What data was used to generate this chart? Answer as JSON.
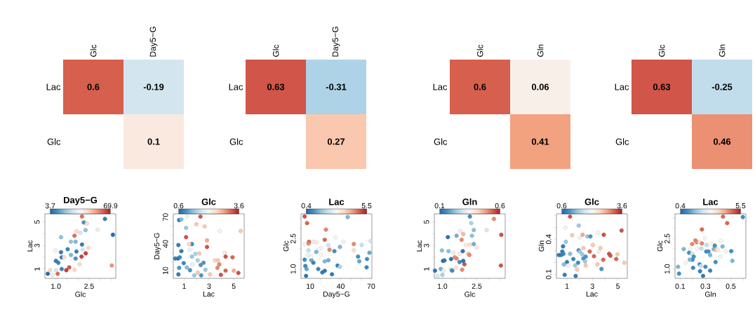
{
  "chart_data": [
    {
      "type": "heatmap",
      "categories": [
        "Glc",
        "Day5−G"
      ],
      "y_categories": [
        "Lac",
        "Glc"
      ],
      "cells": [
        [
          0.6,
          -0.19
        ],
        [
          null,
          0.1
        ]
      ],
      "data_labels": true
    },
    {
      "type": "heatmap",
      "categories": [
        "Glc",
        "Day5−G"
      ],
      "y_categories": [
        "Lac",
        "Glc"
      ],
      "cells": [
        [
          0.63,
          -0.31
        ],
        [
          null,
          0.27
        ]
      ],
      "data_labels": true
    },
    {
      "type": "heatmap",
      "categories": [
        "Glc",
        "Gln"
      ],
      "y_categories": [
        "Lac",
        "Glc"
      ],
      "cells": [
        [
          0.6,
          0.06
        ],
        [
          null,
          0.41
        ]
      ],
      "data_labels": true
    },
    {
      "type": "heatmap",
      "categories": [
        "Glc",
        "Gln"
      ],
      "y_categories": [
        "Lac",
        "Glc"
      ],
      "cells": [
        [
          0.63,
          -0.25
        ],
        [
          null,
          0.46
        ]
      ],
      "data_labels": true
    },
    {
      "type": "scatter",
      "clabel": "Day5−G",
      "xlabel": "Glc",
      "ylabel": "Lac",
      "marker": "circle",
      "clim": [
        3.7,
        69.9
      ],
      "cticks": [
        3.7,
        69.9
      ],
      "xlim": [
        0.5,
        3.71
      ],
      "ylim": [
        0.21,
        5.69
      ],
      "xticks": [
        {
          "value": 1,
          "label": "1.0"
        },
        {
          "value": 1.5,
          "label": null
        },
        {
          "value": 2,
          "label": null
        },
        {
          "value": 2.5,
          "label": "2.5"
        },
        {
          "value": 3,
          "label": null
        },
        {
          "value": 3.5,
          "label": null
        }
      ],
      "yticks": [
        1,
        {
          "value": 2,
          "label": null
        },
        3,
        {
          "value": 4,
          "label": null
        },
        5
      ],
      "x": [
        0.63,
        0.74,
        0.84,
        1.08,
        1.0,
        1.26,
        1.47,
        1.6,
        1.84,
        2.07,
        1.11,
        1.0,
        1.26,
        1.37,
        1.23,
        0.98,
        1.53,
        1.68,
        1.89,
        1.93,
        2.21,
        2.16,
        2.35,
        2.47,
        2.18,
        1.68,
        1.89,
        1.84,
        1.93,
        2.11,
        2.34,
        1.23,
        2.26,
        2.4,
        2.18,
        2.89,
        3.22,
        3.58,
        3.53
      ],
      "values": [
        0.6,
        0.9,
        0.5,
        0.6,
        0.9,
        1.0,
        0.9,
        1.14,
        0.94,
        1.4,
        1.53,
        1.69,
        1.99,
        1.99,
        2.43,
        2.58,
        2.68,
        2.19,
        1.89,
        2.49,
        2.64,
        2.05,
        2.33,
        2.8,
        3.08,
        3.32,
        3.32,
        3.83,
        4.21,
        4.07,
        4.31,
        3.71,
        4.96,
        4.86,
        5.46,
        4.35,
        5.26,
        3.91,
        1.3
      ],
      "cvalues": [
        5,
        45,
        40,
        60,
        30,
        10,
        65,
        62,
        45,
        45,
        10,
        8,
        8,
        45,
        8,
        38,
        10,
        18,
        12,
        8,
        30,
        65,
        65,
        45,
        8,
        20,
        18,
        60,
        45,
        30,
        20,
        20,
        12,
        45,
        60,
        40,
        8,
        5,
        55
      ]
    },
    {
      "type": "scatter",
      "clabel": "Glc",
      "xlabel": "Lac",
      "ylabel": "Day5−G",
      "marker": "circle",
      "clim": [
        0.6,
        3.6
      ],
      "cticks": [
        0.6,
        3.6
      ],
      "xlim": [
        0.12,
        5.84
      ],
      "ylim": [
        1.4,
        73.7
      ],
      "xticks": [
        1,
        {
          "value": 2,
          "label": null
        },
        3,
        {
          "value": 4,
          "label": null
        },
        5
      ],
      "yticks": [
        10,
        {
          "value": 20,
          "label": null
        },
        {
          "value": 30,
          "label": null
        },
        40,
        {
          "value": 50,
          "label": null
        },
        {
          "value": 60,
          "label": null
        },
        70
      ],
      "x": [
        0.59,
        0.77,
        1.24,
        1.15,
        0.53,
        0.77,
        0.49,
        0.27,
        0.64,
        0.96,
        0.59,
        0.53,
        1.21,
        1.47,
        1.66,
        1.62,
        1.62,
        1.39,
        1.15,
        1.43,
        1.9,
        2.09,
        2.33,
        2.56,
        2.22,
        1.81,
        2.09,
        2.37,
        2.71,
        1.99,
        2.65,
        2.31,
        2.84,
        2.84,
        3.08,
        3.46,
        3.72,
        3.83,
        3.68,
        3.96,
        4.28,
        4.34,
        4.34,
        4.9,
        5.0,
        5.37,
        3.87,
        5.56
      ],
      "values": [
        66.7,
        67.4,
        70.6,
        58.0,
        38.7,
        31.9,
        23.6,
        23.6,
        24.9,
        18.4,
        13.1,
        5.8,
        13.6,
        10.5,
        17.0,
        25.7,
        39.8,
        39.8,
        47.6,
        33.5,
        28.8,
        21.5,
        16.3,
        18.9,
        29.3,
        4.8,
        7.9,
        4.8,
        11.0,
        62.0,
        59.6,
        70.6,
        36.6,
        43.9,
        5.8,
        21.5,
        21.5,
        17.0,
        13.1,
        5.3,
        30.1,
        25.7,
        10.0,
        24.9,
        10.0,
        7.4,
        54.4,
        54.4
      ],
      "cvalues": [
        0.8,
        1.3,
        2.0,
        1.4,
        0.8,
        0.8,
        0.7,
        0.8,
        0.9,
        0.9,
        1.0,
        0.8,
        1.3,
        1.0,
        2.0,
        1.4,
        0.9,
        2.5,
        3.3,
        2.0,
        1.5,
        1.5,
        1.0,
        1.0,
        2.6,
        1.4,
        2.6,
        1.0,
        1.4,
        2.6,
        2.6,
        3.3,
        3.3,
        2.8,
        2.6,
        2.5,
        2.6,
        3.0,
        3.0,
        3.3,
        2.3,
        3.3,
        3.2,
        3.2,
        2.8,
        3.3,
        2.2,
        2.6
      ]
    },
    {
      "type": "scatter",
      "clabel": "Lac",
      "xlabel": "Day5−G",
      "ylabel": "Glc",
      "marker": "circle",
      "clim": [
        0.4,
        5.5
      ],
      "cticks": [
        0.4,
        5.5
      ],
      "xlim": [
        0.95,
        70.7
      ],
      "ylim": [
        0.54,
        3.72
      ],
      "xticks": [
        10,
        {
          "value": 20,
          "label": null
        },
        {
          "value": 30,
          "label": null
        },
        40,
        {
          "value": 50,
          "label": null
        },
        {
          "value": 60,
          "label": null
        },
        70
      ],
      "yticks": [
        {
          "value": 1,
          "label": "1.0"
        },
        {
          "value": 1.5,
          "label": null
        },
        {
          "value": 2,
          "label": null
        },
        {
          "value": 2.5,
          "label": "2.5"
        },
        {
          "value": 3,
          "label": null
        },
        {
          "value": 3.5,
          "label": null
        }
      ],
      "x": [
        4.5,
        6.9,
        25.5,
        24.3,
        8.8,
        8.3,
        4.5,
        13.1,
        16.0,
        20.7,
        18.3,
        29.0,
        35.0,
        42.6,
        27.9,
        33.8,
        39.3,
        46.9,
        52.9,
        52.9,
        60.7,
        69.5,
        68.3,
        57.1,
        58.3,
        65.9,
        65.5,
        36.9,
        39.3,
        31.4,
        24.3,
        21.9,
        17.9,
        13.1,
        11.2,
        6.4,
        5.2,
        5.9,
        4.5,
        7.6,
        10.7,
        8.3,
        16.0,
        20.7,
        24.3,
        27.9
      ],
      "values": [
        3.59,
        3.26,
        2.94,
        2.44,
        2.34,
        2.26,
        2.23,
        2.34,
        2.32,
        2.03,
        1.95,
        1.95,
        2.55,
        2.34,
        2.17,
        1.88,
        2.09,
        3.56,
        2.23,
        1.92,
        2.18,
        2.38,
        1.8,
        1.61,
        1.38,
        1.49,
        1.08,
        1.17,
        1.11,
        0.74,
        0.91,
        0.83,
        1.0,
        1.31,
        1.43,
        1.0,
        1.15,
        0.66,
        1.46,
        1.69,
        1.61,
        1.92,
        1.84,
        1.69,
        1.38,
        1.43
      ],
      "cvalues": [
        5.0,
        4.8,
        4.5,
        4.8,
        4.8,
        4.5,
        3.0,
        3.2,
        3.2,
        3.0,
        3.0,
        4.5,
        3.0,
        2.8,
        2.3,
        1.0,
        1.5,
        1.5,
        4.5,
        3.5,
        2.2,
        2.3,
        1.3,
        1.0,
        1.3,
        1.0,
        0.9,
        0.8,
        2.0,
        0.7,
        0.7,
        0.7,
        0.9,
        0.8,
        1.3,
        1.3,
        0.9,
        0.6,
        1.0,
        2.8,
        2.9,
        2.2,
        1.5,
        3.0,
        1.5,
        1.4
      ]
    },
    {
      "type": "scatter",
      "clabel": "Gln",
      "xlabel": "Glc",
      "ylabel": "Lac",
      "marker": "circle",
      "clim": [
        0.1,
        0.6
      ],
      "cticks": [
        0.1,
        0.6
      ],
      "xlim": [
        0.65,
        3.74
      ],
      "ylim": [
        0.21,
        5.69
      ],
      "xticks": [
        {
          "value": 1,
          "label": "1.0"
        },
        {
          "value": 1.5,
          "label": null
        },
        {
          "value": 2,
          "label": null
        },
        {
          "value": 2.5,
          "label": "2.5"
        },
        {
          "value": 3,
          "label": null
        },
        {
          "value": 3.5,
          "label": null
        }
      ],
      "yticks": [
        1,
        {
          "value": 2,
          "label": null
        },
        3,
        {
          "value": 4,
          "label": null
        },
        5
      ],
      "x": [
        0.68,
        0.79,
        0.93,
        1.03,
        1.09,
        1.05,
        1.0,
        1.38,
        1.43,
        1.59,
        1.86,
        1.96,
        1.75,
        1.91,
        1.38,
        1.62,
        1.54,
        1.27,
        1.24,
        0.98,
        1.48,
        1.75,
        1.89,
        2.13,
        2.18,
        2.02,
        2.2,
        2.37,
        2.5,
        1.84,
        1.91,
        1.77,
        2.29,
        2.37,
        2.26,
        2.2,
        2.93,
        3.25,
        3.57,
        3.55,
        1.62
      ],
      "values": [
        0.86,
        0.41,
        1.0,
        1.69,
        1.73,
        0.86,
        0.5,
        0.94,
        0.86,
        1.1,
        0.94,
        1.4,
        1.59,
        1.69,
        1.85,
        1.89,
        1.99,
        2.52,
        3.71,
        2.58,
        2.39,
        2.29,
        2.52,
        2.29,
        2.19,
        3.04,
        3.08,
        3.12,
        2.82,
        3.48,
        3.97,
        4.23,
        3.83,
        4.31,
        4.9,
        5.46,
        4.31,
        5.26,
        3.91,
        1.3,
        3.83
      ],
      "cvalues": [
        0.12,
        0.3,
        0.2,
        0.12,
        0.12,
        0.38,
        0.25,
        0.25,
        0.15,
        0.4,
        0.5,
        0.55,
        0.15,
        0.12,
        0.12,
        0.5,
        0.5,
        0.22,
        0.12,
        0.22,
        0.38,
        0.38,
        0.12,
        0.45,
        0.5,
        0.38,
        0.4,
        0.2,
        0.38,
        0.5,
        0.45,
        0.38,
        0.22,
        0.22,
        0.25,
        0.15,
        0.3,
        0.5,
        0.55,
        0.55,
        0.2
      ]
    },
    {
      "type": "scatter",
      "clabel": "Glc",
      "xlabel": "Lac",
      "ylabel": "Gln",
      "marker": "circle",
      "clim": [
        0.6,
        3.6
      ],
      "cticks": [
        0.6,
        3.6
      ],
      "xlim": [
        0.17,
        5.74
      ],
      "ylim": [
        0.066,
        0.617
      ],
      "xticks": [
        1,
        {
          "value": 2,
          "label": null
        },
        3,
        {
          "value": 4,
          "label": null
        },
        5
      ],
      "yticks": [
        0.1,
        {
          "value": 0.2,
          "label": null
        },
        {
          "value": 0.3,
          "label": null
        },
        0.4,
        {
          "value": 0.5,
          "label": null
        },
        {
          "value": 0.6,
          "label": null
        }
      ],
      "x": [
        1.24,
        0.87,
        1.92,
        1.41,
        0.91,
        0.69,
        0.63,
        0.36,
        0.54,
        0.72,
        1.24,
        1.0,
        0.76,
        1.09,
        1.5,
        1.87,
        1.64,
        1.79,
        0.82,
        1.68,
        1.92,
        2.01,
        2.29,
        2.2,
        2.29,
        2.47,
        2.42,
        2.47,
        2.79,
        3.12,
        3.03,
        2.23,
        2.01,
        2.6,
        2.84,
        3.45,
        3.49,
        3.63,
        3.39,
        3.71,
        3.89,
        3.85,
        4.31,
        4.41,
        4.96,
        4.87,
        5.51,
        5.29
      ],
      "values": [
        0.593,
        0.498,
        0.517,
        0.434,
        0.378,
        0.339,
        0.295,
        0.265,
        0.265,
        0.275,
        0.275,
        0.205,
        0.185,
        0.176,
        0.231,
        0.199,
        0.176,
        0.14,
        0.096,
        0.086,
        0.305,
        0.295,
        0.325,
        0.271,
        0.235,
        0.251,
        0.211,
        0.176,
        0.295,
        0.255,
        0.35,
        0.438,
        0.414,
        0.424,
        0.424,
        0.458,
        0.295,
        0.325,
        0.185,
        0.146,
        0.438,
        0.225,
        0.275,
        0.259,
        0.271,
        0.231,
        0.199,
        0.474
      ],
      "cvalues": [
        3.3,
        2.0,
        1.4,
        2.6,
        1.4,
        0.8,
        0.8,
        0.8,
        0.8,
        0.9,
        1.3,
        0.8,
        1.3,
        2.0,
        0.9,
        0.9,
        1.4,
        2.6,
        0.8,
        0.8,
        0.9,
        1.4,
        2.6,
        1.4,
        1.0,
        1.0,
        1.4,
        2.6,
        3.2,
        3.2,
        2.6,
        2.8,
        2.0,
        1.4,
        1.0,
        2.2,
        2.2,
        2.6,
        2.6,
        1.0,
        3.3,
        3.2,
        3.3,
        3.3,
        2.6,
        3.2,
        2.6,
        3.3
      ]
    },
    {
      "type": "scatter",
      "clabel": "Lac",
      "xlabel": "Gln",
      "ylabel": "Glc",
      "marker": "circle",
      "clim": [
        0.4,
        5.5
      ],
      "cticks": [
        0.4,
        5.5
      ],
      "xlim": [
        0.059,
        0.62
      ],
      "ylim": [
        0.54,
        3.72
      ],
      "xticks": [
        0.1,
        {
          "value": 0.2,
          "label": null
        },
        0.3,
        {
          "value": 0.4,
          "label": null
        },
        0.5,
        {
          "value": 0.6,
          "label": null
        }
      ],
      "yticks": [
        {
          "value": 1,
          "label": "1.0"
        },
        {
          "value": 1.5,
          "label": null
        },
        {
          "value": 2,
          "label": null
        },
        {
          "value": 2.5,
          "label": "2.5"
        },
        {
          "value": 3,
          "label": null
        },
        {
          "value": 3.5,
          "label": null
        }
      ],
      "x": [
        0.083,
        0.091,
        0.143,
        0.128,
        0.18,
        0.17,
        0.194,
        0.194,
        0.22,
        0.231,
        0.254,
        0.272,
        0.294,
        0.272,
        0.235,
        0.268,
        0.309,
        0.306,
        0.35,
        0.324,
        0.337,
        0.374,
        0.365,
        0.383,
        0.398,
        0.42,
        0.435,
        0.42,
        0.38,
        0.461,
        0.504,
        0.513,
        0.439,
        0.472,
        0.596,
        0.198,
        0.176,
        0.207,
        0.254,
        0.263,
        0.257,
        0.281,
        0.3,
        0.337,
        0.202
      ],
      "values": [
        1.11,
        0.77,
        1.29,
        1.98,
        1.98,
        1.8,
        1.75,
        2.23,
        2.41,
        2.32,
        2.32,
        2.26,
        2.53,
        2.95,
        2.01,
        2.01,
        2.18,
        1.86,
        2.23,
        1.86,
        1.69,
        2.15,
        1.98,
        1.95,
        1.95,
        2.38,
        2.11,
        1.61,
        1.34,
        1.88,
        1.88,
        1.4,
        3.58,
        3.26,
        3.56,
        1.46,
        1.46,
        1.61,
        1.23,
        1.15,
        0.89,
        0.66,
        1.11,
        0.92,
        1.06
      ],
      "cvalues": [
        1.5,
        1.0,
        3.0,
        1.5,
        3.0,
        1.0,
        2.3,
        4.5,
        4.5,
        4.5,
        3.2,
        4.5,
        3.0,
        4.8,
        3.0,
        2.2,
        2.2,
        1.0,
        3.0,
        1.0,
        1.5,
        1.0,
        1.5,
        4.0,
        3.2,
        3.0,
        1.5,
        3.0,
        1.0,
        3.0,
        1.0,
        1.5,
        4.8,
        4.8,
        1.0,
        1.0,
        1.5,
        1.0,
        1.0,
        2.2,
        0.8,
        0.7,
        1.0,
        0.8,
        0.9
      ]
    }
  ]
}
